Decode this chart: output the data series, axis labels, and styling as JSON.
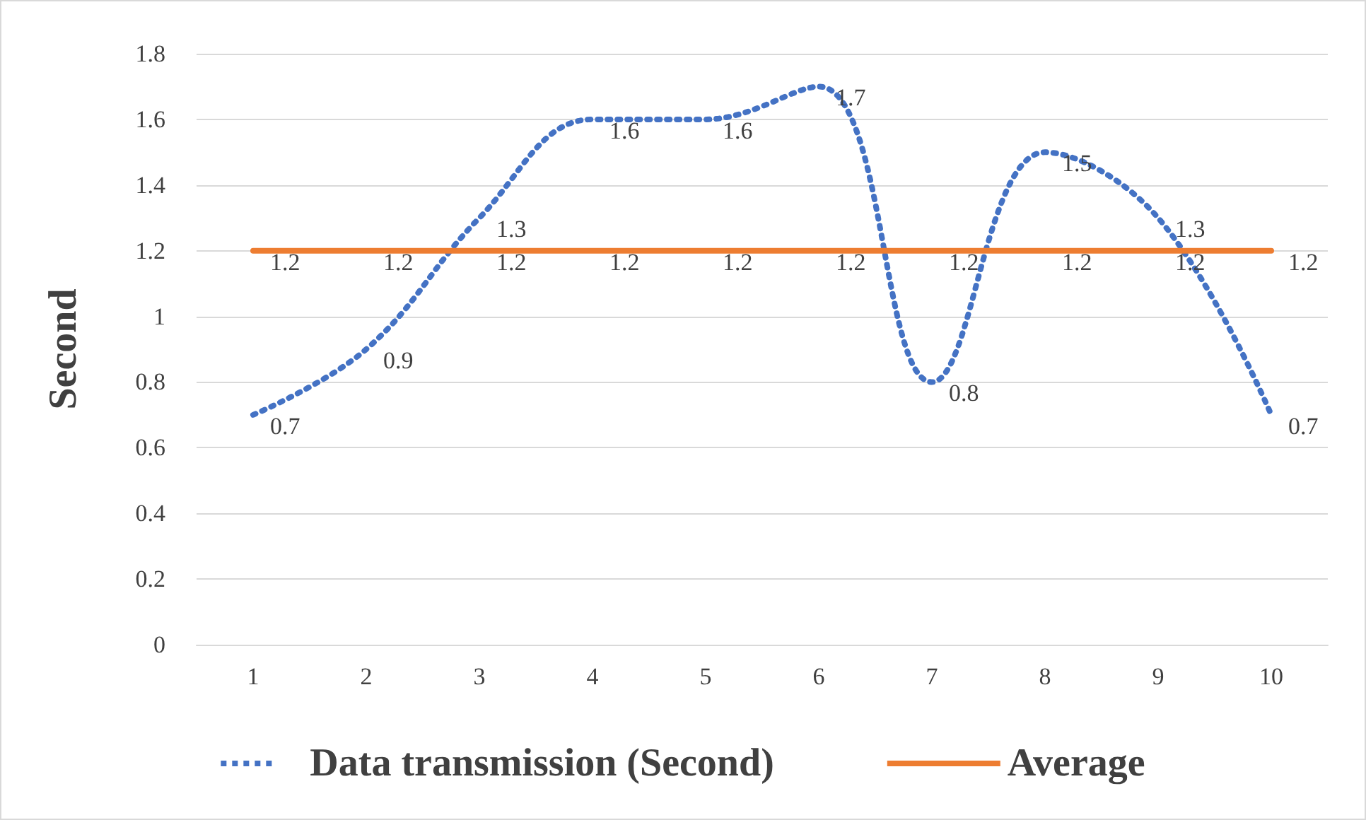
{
  "chart_data": {
    "type": "line",
    "ylabel": "Second",
    "categories": [
      "1",
      "2",
      "3",
      "4",
      "5",
      "6",
      "7",
      "8",
      "9",
      "10"
    ],
    "series": [
      {
        "name": "Data transmission (Second)",
        "color": "#4472c4",
        "line_style": "dotted",
        "values": [
          0.7,
          0.9,
          1.3,
          1.6,
          1.6,
          1.7,
          0.8,
          1.5,
          1.3,
          0.7
        ]
      },
      {
        "name": "Average",
        "color": "#ed7d31",
        "line_style": "solid",
        "values": [
          1.2,
          1.2,
          1.2,
          1.2,
          1.2,
          1.2,
          1.2,
          1.2,
          1.2,
          1.2
        ]
      }
    ],
    "ylim": [
      0,
      1.8
    ],
    "yticks": [
      0,
      0.2,
      0.4,
      0.6,
      0.8,
      1,
      1.2,
      1.4,
      1.6,
      1.8
    ],
    "grid": "y",
    "legend": "bottom",
    "marker": "none",
    "data_labels": true
  }
}
